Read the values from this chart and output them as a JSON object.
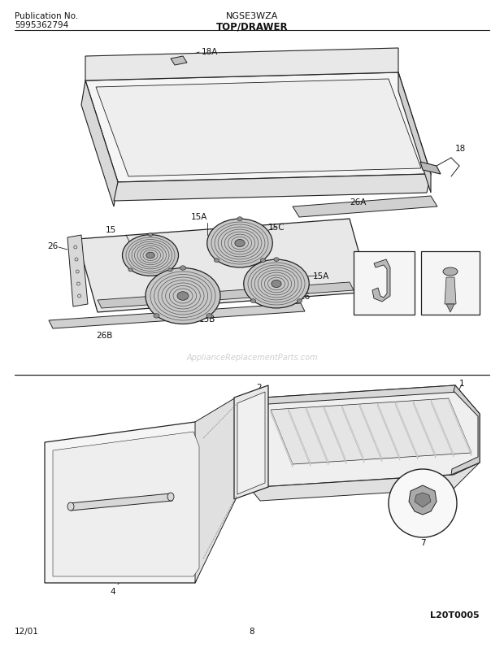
{
  "title_model": "NGSE3WZA",
  "title_section": "TOP/DRAWER",
  "pub_no_label": "Publication No.",
  "pub_no": "5995362794",
  "date": "12/01",
  "page": "8",
  "diagram_id": "L20T0005",
  "bg_color": "#ffffff",
  "line_color": "#222222",
  "watermark": "ApplianceReplacementParts.com"
}
